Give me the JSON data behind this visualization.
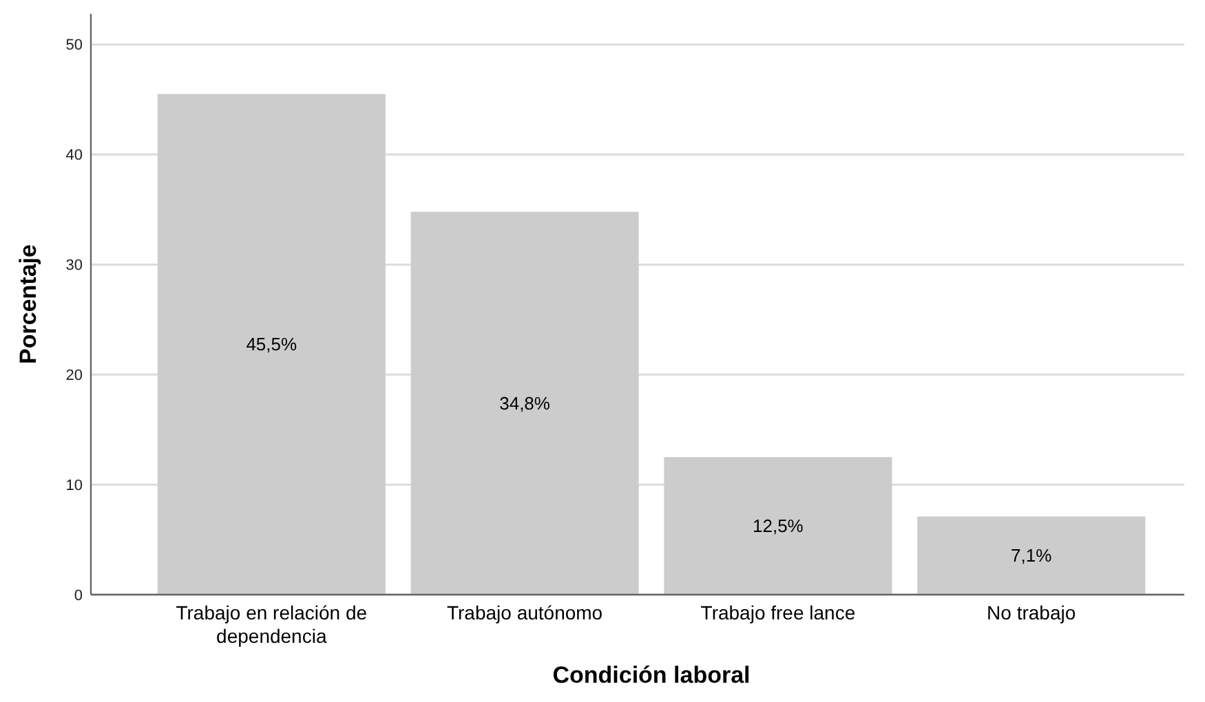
{
  "chart_data": {
    "type": "bar",
    "xlabel": "Condición laboral",
    "ylabel": "Porcentaje",
    "categories": [
      "Trabajo en relación de dependencia",
      "Trabajo autónomo",
      "Trabajo free lance",
      "No trabajo"
    ],
    "values": [
      45.5,
      34.8,
      12.5,
      7.1
    ],
    "value_labels": [
      "45,5%",
      "34,8%",
      "12,5%",
      "7,1%"
    ],
    "color": "#cccccc",
    "ylim": [
      0,
      52.8
    ],
    "yticks": [
      0,
      10,
      20,
      30,
      40,
      50
    ],
    "grid": "y"
  }
}
